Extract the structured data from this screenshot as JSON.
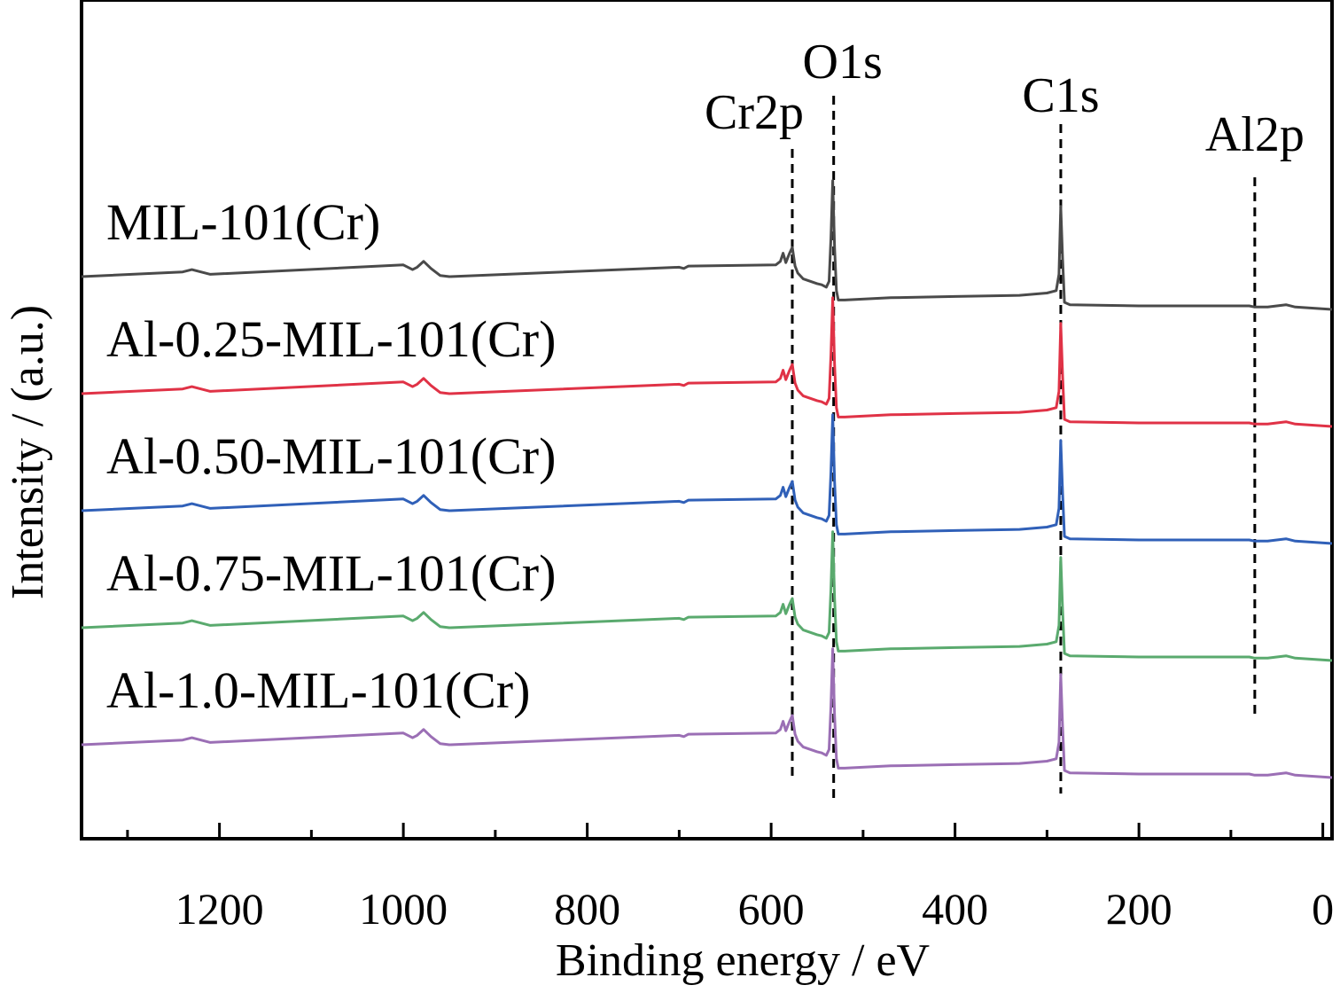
{
  "chart_data": {
    "type": "line",
    "xlabel": "Binding energy / eV",
    "ylabel": "Intensity / (a.u.)",
    "xlim": [
      1350,
      -10
    ],
    "x_reversed": true,
    "x_ticks": [
      1200,
      1000,
      800,
      600,
      400,
      200,
      0
    ],
    "x_tick_labels": [
      "1200",
      "1000",
      "800",
      "600",
      "400",
      "200",
      "0"
    ],
    "y_ticks_shown": false,
    "grid": false,
    "legend": "none",
    "line_width": 3,
    "peak_markers": [
      {
        "label": "Cr2p",
        "x": 577,
        "color": "#000000"
      },
      {
        "label": "O1s",
        "x": 532,
        "color": "#000000"
      },
      {
        "label": "C1s",
        "x": 285,
        "color": "#000000"
      },
      {
        "label": "Al2p",
        "x": 74,
        "color": "#000000"
      }
    ],
    "series": [
      {
        "name": "MIL-101(Cr)",
        "color": "#4a4a4a",
        "offset": 4.0
      },
      {
        "name": "Al-0.25-MIL-101(Cr)",
        "color": "#e03246",
        "offset": 3.0
      },
      {
        "name": "Al-0.50-MIL-101(Cr)",
        "color": "#3060b8",
        "offset": 2.0
      },
      {
        "name": "Al-0.75-MIL-101(Cr)",
        "color": "#5aaa6e",
        "offset": 1.0
      },
      {
        "name": "Al-1.0-MIL-101(Cr)",
        "color": "#9b6fb5",
        "offset": 0.0
      }
    ],
    "spectrum_baseline": {
      "x": [
        1350,
        1240,
        1230,
        1210,
        1000,
        990,
        985,
        978,
        970,
        960,
        950,
        700,
        695,
        690,
        595,
        590,
        587,
        584,
        580,
        577,
        574,
        571,
        565,
        550,
        545,
        540,
        537,
        535,
        533,
        531,
        529,
        527,
        520,
        470,
        400,
        330,
        300,
        290,
        287,
        285,
        283,
        281,
        275,
        200,
        100,
        80,
        74,
        60,
        40,
        30,
        10,
        -10
      ],
      "y": [
        0.0,
        0.04,
        0.06,
        0.02,
        0.1,
        0.06,
        0.08,
        0.13,
        0.07,
        0.01,
        0.0,
        0.08,
        0.07,
        0.09,
        0.1,
        0.13,
        0.2,
        0.12,
        0.2,
        0.25,
        0.09,
        0.03,
        -0.02,
        -0.06,
        -0.07,
        -0.09,
        -0.04,
        0.33,
        0.82,
        0.25,
        -0.12,
        -0.2,
        -0.2,
        -0.18,
        -0.17,
        -0.16,
        -0.14,
        -0.12,
        0.02,
        0.6,
        0.15,
        -0.22,
        -0.24,
        -0.25,
        -0.25,
        -0.25,
        -0.26,
        -0.26,
        -0.24,
        -0.26,
        -0.27,
        -0.28
      ]
    }
  }
}
